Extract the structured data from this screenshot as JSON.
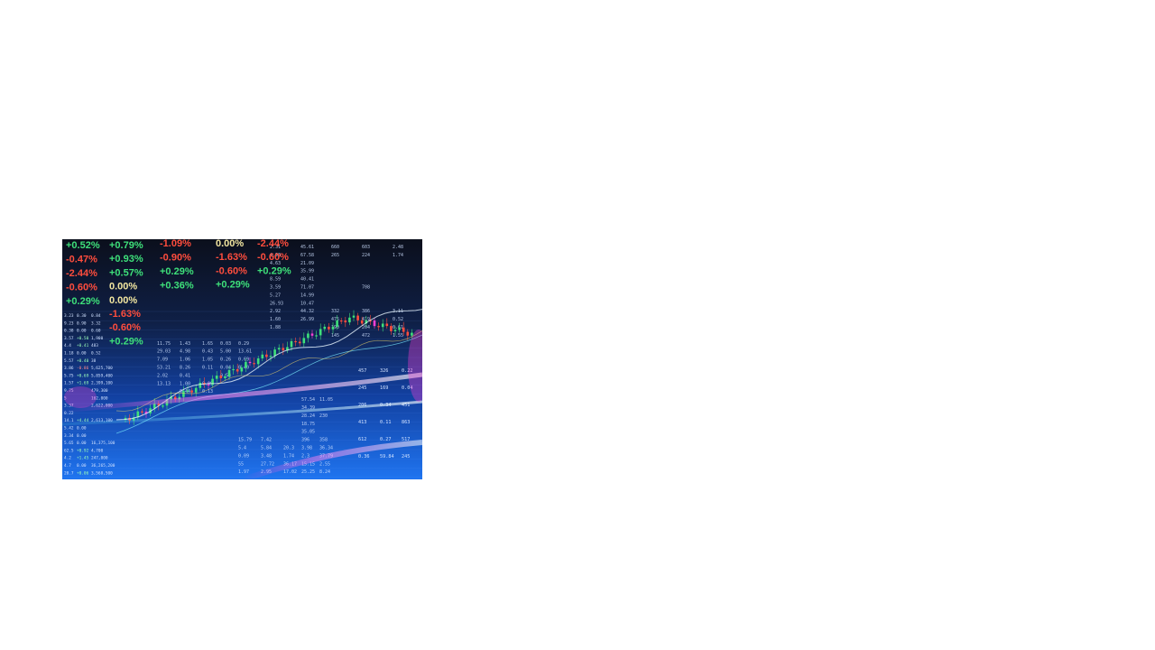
{
  "slide": {
    "image": {
      "description_icon": "stock-market-screen-image",
      "colors": {
        "background_top": "#0b0f1c",
        "background_bottom": "#1f74f0",
        "up": "#3ee07a",
        "down": "#ff4d3d",
        "neutral": "#f2e6a0",
        "accent_pink": "#ff3fd6",
        "grid_text": "#cfe0ff"
      },
      "tickers": {
        "col1": [
          "+0.52%",
          "-0.47%",
          "-2.44%",
          "-0.60%",
          "+0.29%"
        ],
        "col2": [
          "+0.79%",
          "+0.93%",
          "+0.57%",
          "0.00%",
          "0.00%",
          "-1.63%",
          "-0.60%",
          "+0.29%"
        ],
        "col3": [
          "-1.09%",
          "-0.90%",
          "+0.29%",
          "+0.36%"
        ],
        "col4": [
          "0.00%",
          "-1.63%",
          "-0.60%",
          "+0.29%"
        ],
        "col5": [
          "-2.44%",
          "-0.60%",
          "+0.29%"
        ]
      },
      "grid_rows": [
        [
          "2.31",
          "45.61",
          "660",
          "603",
          "2.48"
        ],
        [
          "4.93",
          "67.58",
          "265",
          "224",
          "1.74"
        ],
        [
          "4.63",
          "21.09",
          "",
          "",
          ""
        ],
        [
          "",
          "35.99",
          "",
          "",
          ""
        ],
        [
          "8.59",
          "40.41",
          "",
          "",
          ""
        ],
        [
          "3.59",
          "71.07",
          "",
          "708",
          ""
        ],
        [
          "5.27",
          "14.99",
          "",
          "",
          ""
        ],
        [
          "26.93",
          "10.47",
          "",
          "",
          ""
        ],
        [
          "2.92",
          "44.32",
          "332",
          "386",
          "3.11"
        ],
        [
          "1.60",
          "26.99",
          "475",
          "419",
          "0.52"
        ],
        [
          "1.88",
          "",
          "190",
          "204",
          "0.61"
        ],
        [
          "",
          "",
          "145",
          "472",
          "1.55"
        ],
        [
          "11.75",
          "1.43",
          "1.65",
          "0.03",
          "0.29"
        ],
        [
          "29.03",
          "4.98",
          "0.43",
          "5.00",
          "13.61"
        ],
        [
          "7.09",
          "1.06",
          "1.05",
          "0.26",
          "0.69"
        ],
        [
          "53.21",
          "8.26",
          "0.11",
          "0.04",
          "0.40"
        ],
        [
          "2.02",
          "0.41",
          "",
          "0.53",
          ""
        ],
        [
          "13.13",
          "1.00",
          "0.09",
          "",
          ""
        ],
        [
          "",
          "0.44",
          "0.13",
          "",
          ""
        ],
        [
          "",
          "",
          "",
          "57.54",
          "11.05"
        ],
        [
          "",
          "",
          "",
          "34.39",
          ""
        ],
        [
          "",
          "",
          "",
          "28.24",
          "230"
        ],
        [
          "",
          "",
          "",
          "18.75",
          ""
        ],
        [
          "",
          "",
          "",
          "35.05",
          ""
        ],
        [
          "15.79",
          "7.42",
          "",
          "396",
          "358"
        ],
        [
          "5.4",
          "5.84",
          "20.3",
          "3.98",
          "36.34"
        ],
        [
          "0.09",
          "3.48",
          "1.74",
          "2.3",
          "37.79"
        ],
        [
          "55",
          "27.72",
          "36.17",
          "15.15",
          "2.55"
        ],
        [
          "1.97",
          "2.95",
          "17.02",
          "25.25",
          "8.24"
        ]
      ],
      "side_rows": [
        [
          "3.23",
          "0.30",
          "0.84"
        ],
        [
          "9.23",
          "0.90",
          "3.32"
        ],
        [
          "0.38",
          "0.00",
          "0.60"
        ],
        [
          "3.57",
          "+0.50",
          "1,900"
        ],
        [
          "4.4",
          "+0.41",
          "483"
        ],
        [
          "1.18",
          "0.00",
          "0.52"
        ],
        [
          "5.57",
          "+0.40",
          "38"
        ],
        [
          "3.86",
          "-0.86",
          "5,625,700"
        ],
        [
          "5.75",
          "+0.69",
          "5,859,400"
        ],
        [
          "1.57",
          "+1.69",
          "2,399,100"
        ],
        [
          "9.75",
          "",
          "479,300"
        ],
        [
          "5",
          "",
          "162,000"
        ],
        [
          "3.37",
          "",
          "2,622,000"
        ],
        [
          "0.22",
          "",
          ""
        ],
        [
          "14.1",
          "+4.44",
          "2,613,100"
        ],
        [
          "5.42",
          "0.00",
          ""
        ],
        [
          "3.34",
          "0.00",
          ""
        ],
        [
          "5.65",
          "0.00",
          "16,375,100"
        ],
        [
          "62.5",
          "+0.92",
          "4,700"
        ],
        [
          "4.2",
          "+1.45",
          "247,000"
        ],
        [
          "4.7",
          "0.00",
          "36,265,200"
        ],
        [
          "20.7",
          "+0.06",
          "3,568,500"
        ]
      ],
      "extra_numbers": [
        "457",
        "326",
        "0.22",
        "245",
        "169",
        "0.04",
        "206",
        "0.34",
        "451",
        "413",
        "0.11",
        "863",
        "612",
        "0.27",
        "517",
        "0.36",
        "59.84",
        "245"
      ]
    }
  }
}
